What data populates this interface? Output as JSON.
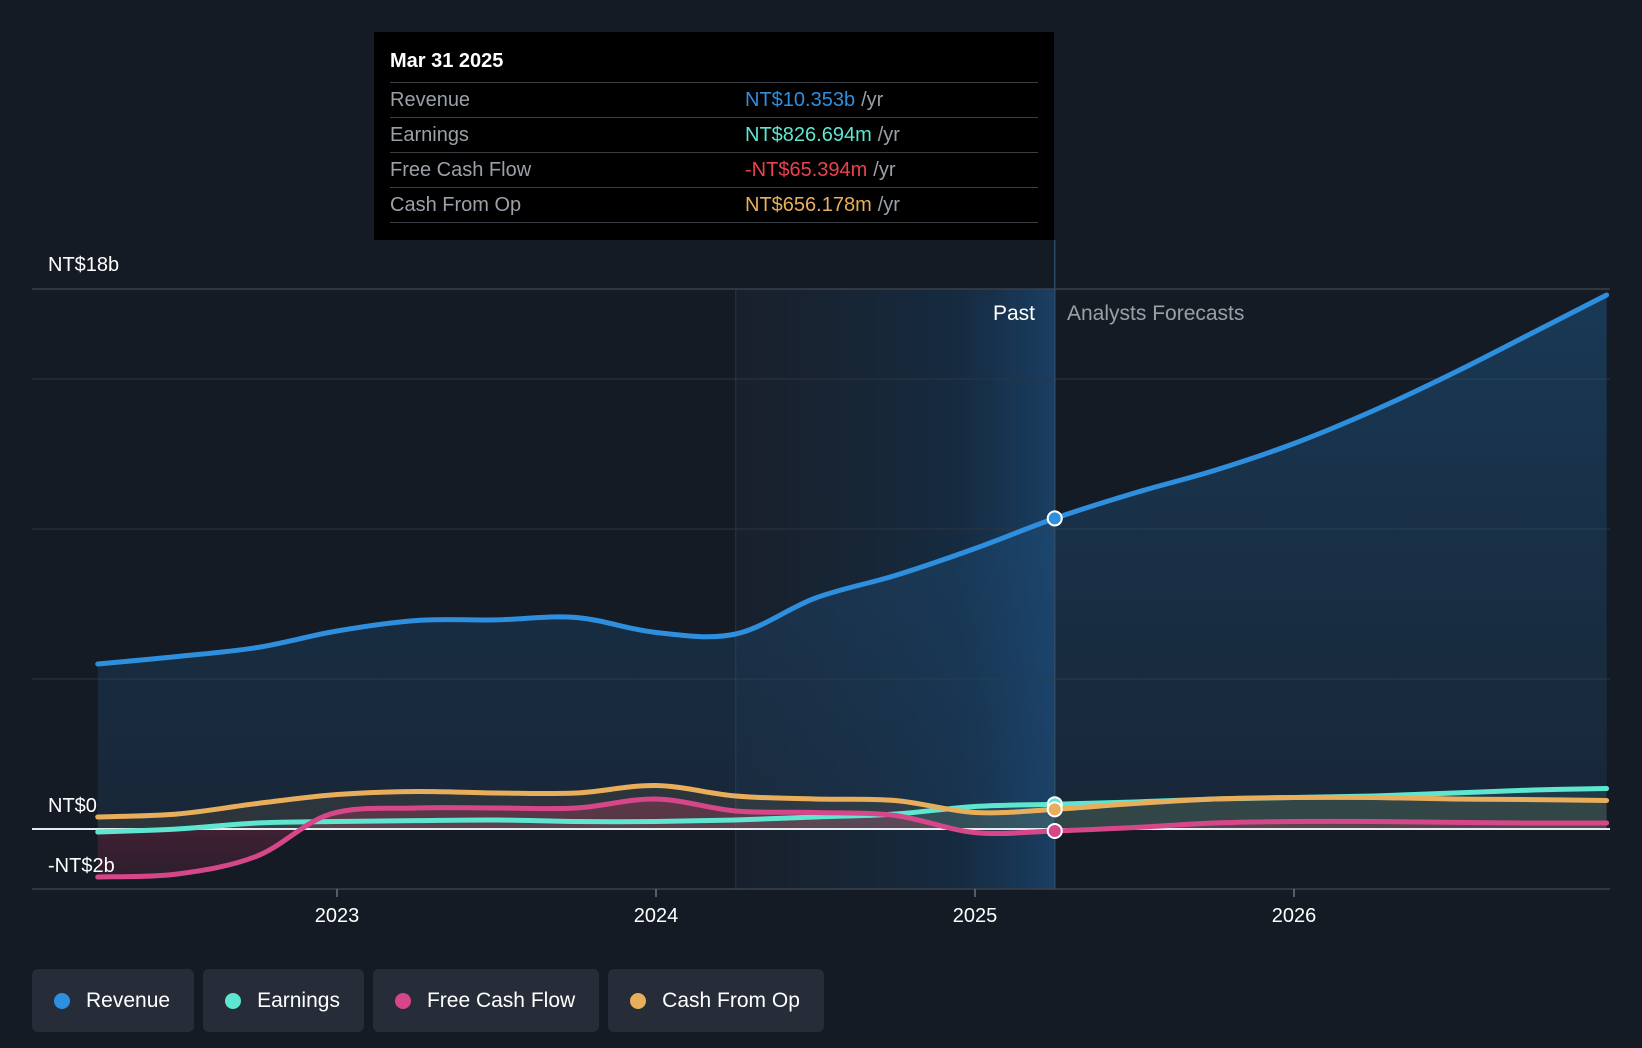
{
  "chart_data": {
    "type": "area",
    "title": "",
    "x_axis": {
      "ticks": [
        "2023",
        "2024",
        "2025",
        "2026"
      ],
      "range": [
        2022.25,
        2026.98
      ]
    },
    "y_axis": {
      "labels": {
        "top": "NT$18b",
        "zero": "NT$0",
        "bottom": "-NT$2b"
      },
      "ylim": [
        -2,
        18
      ],
      "grid_step": 5
    },
    "divider": {
      "date": 2025.25,
      "past_label": "Past",
      "forecast_label": "Analysts Forecasts"
    },
    "series": [
      {
        "name": "Revenue",
        "color": "#2e8fdf",
        "points": [
          [
            2022.25,
            5.5
          ],
          [
            2022.5,
            5.75
          ],
          [
            2022.75,
            6.05
          ],
          [
            2023,
            6.6
          ],
          [
            2023.25,
            6.95
          ],
          [
            2023.5,
            6.97
          ],
          [
            2023.75,
            7.05
          ],
          [
            2024,
            6.55
          ],
          [
            2024.25,
            6.5
          ],
          [
            2024.5,
            7.7
          ],
          [
            2024.75,
            8.45
          ],
          [
            2025,
            9.35
          ],
          [
            2025.25,
            10.353
          ],
          [
            2025.5,
            11.2
          ],
          [
            2025.75,
            11.95
          ],
          [
            2026,
            12.85
          ],
          [
            2026.25,
            13.95
          ],
          [
            2026.5,
            15.2
          ],
          [
            2026.75,
            16.55
          ],
          [
            2026.98,
            17.8
          ]
        ]
      },
      {
        "name": "Earnings",
        "color": "#5ee6d0",
        "points": [
          [
            2022.25,
            -0.1
          ],
          [
            2022.5,
            0.0
          ],
          [
            2022.75,
            0.2
          ],
          [
            2023,
            0.25
          ],
          [
            2023.25,
            0.28
          ],
          [
            2023.5,
            0.3
          ],
          [
            2023.75,
            0.25
          ],
          [
            2024,
            0.25
          ],
          [
            2024.25,
            0.3
          ],
          [
            2024.5,
            0.4
          ],
          [
            2024.75,
            0.5
          ],
          [
            2025,
            0.75
          ],
          [
            2025.25,
            0.827
          ],
          [
            2025.5,
            0.9
          ],
          [
            2025.75,
            1.0
          ],
          [
            2026,
            1.05
          ],
          [
            2026.25,
            1.1
          ],
          [
            2026.5,
            1.2
          ],
          [
            2026.75,
            1.3
          ],
          [
            2026.98,
            1.35
          ]
        ]
      },
      {
        "name": "Free Cash Flow",
        "color": "#d6478a",
        "points": [
          [
            2022.25,
            -1.6
          ],
          [
            2022.5,
            -1.5
          ],
          [
            2022.75,
            -0.9
          ],
          [
            2022.98,
            0.5
          ],
          [
            2023.25,
            0.7
          ],
          [
            2023.5,
            0.7
          ],
          [
            2023.75,
            0.7
          ],
          [
            2024,
            1.0
          ],
          [
            2024.25,
            0.6
          ],
          [
            2024.5,
            0.55
          ],
          [
            2024.75,
            0.45
          ],
          [
            2025,
            -0.12
          ],
          [
            2025.25,
            -0.065
          ],
          [
            2025.5,
            0.05
          ],
          [
            2025.75,
            0.2
          ],
          [
            2026,
            0.25
          ],
          [
            2026.25,
            0.25
          ],
          [
            2026.5,
            0.22
          ],
          [
            2026.75,
            0.2
          ],
          [
            2026.98,
            0.2
          ]
        ]
      },
      {
        "name": "Cash From Op",
        "color": "#e8ae5c",
        "points": [
          [
            2022.25,
            0.4
          ],
          [
            2022.5,
            0.5
          ],
          [
            2022.75,
            0.85
          ],
          [
            2023,
            1.15
          ],
          [
            2023.25,
            1.25
          ],
          [
            2023.5,
            1.2
          ],
          [
            2023.75,
            1.2
          ],
          [
            2024,
            1.45
          ],
          [
            2024.25,
            1.1
          ],
          [
            2024.5,
            1.0
          ],
          [
            2024.75,
            0.95
          ],
          [
            2025,
            0.55
          ],
          [
            2025.25,
            0.656
          ],
          [
            2025.5,
            0.85
          ],
          [
            2025.75,
            1.0
          ],
          [
            2026,
            1.05
          ],
          [
            2026.25,
            1.05
          ],
          [
            2026.5,
            1.0
          ],
          [
            2026.75,
            0.98
          ],
          [
            2026.98,
            0.95
          ]
        ]
      }
    ],
    "highlight_points": {
      "Revenue": 10.353,
      "Earnings": 0.827,
      "Free Cash Flow": -0.065,
      "Cash From Op": 0.656
    }
  },
  "tooltip": {
    "date": "Mar 31 2025",
    "rows": [
      {
        "label": "Revenue",
        "value": "NT$10.353b",
        "unit": "/yr",
        "color": "#2e8fdf"
      },
      {
        "label": "Earnings",
        "value": "NT$826.694m",
        "unit": "/yr",
        "color": "#5ee6d0"
      },
      {
        "label": "Free Cash Flow",
        "value": "-NT$65.394m",
        "unit": "/yr",
        "color": "#e8434c"
      },
      {
        "label": "Cash From Op",
        "value": "NT$656.178m",
        "unit": "/yr",
        "color": "#e8ae5c"
      }
    ]
  },
  "legend": [
    {
      "label": "Revenue",
      "color": "#2e8fdf"
    },
    {
      "label": "Earnings",
      "color": "#5ee6d0"
    },
    {
      "label": "Free Cash Flow",
      "color": "#d6478a"
    },
    {
      "label": "Cash From Op",
      "color": "#e8ae5c"
    }
  ]
}
